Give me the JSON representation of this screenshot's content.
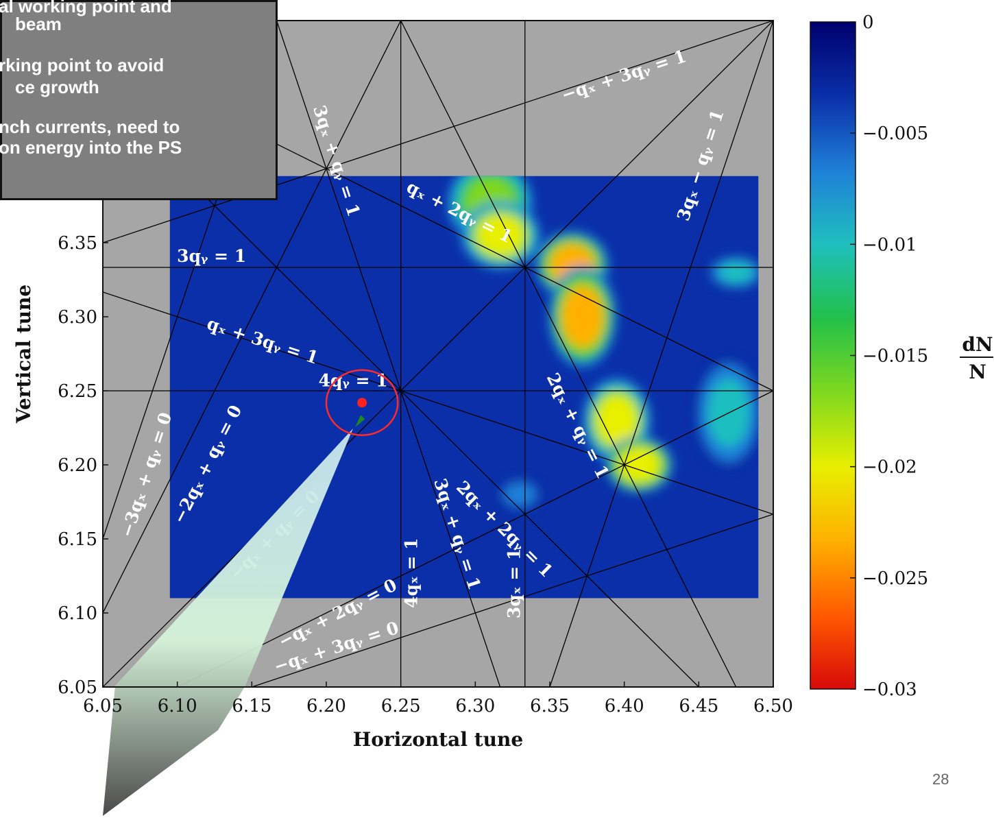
{
  "callout": {
    "lines": [
      "al working point and",
      "beam",
      "rking point to avoid",
      "ce growth",
      "nch currents, need to",
      "on energy into the PS"
    ]
  },
  "page_number": "28",
  "chart_data": {
    "type": "heatmap",
    "xlabel": "Horizontal tune",
    "ylabel": "Vertical tune",
    "xlim": [
      6.05,
      6.5
    ],
    "ylim": [
      6.05,
      6.5
    ],
    "x_ticks": [
      "6.05",
      "6.10",
      "6.15",
      "6.20",
      "6.25",
      "6.30",
      "6.35",
      "6.40",
      "6.45",
      "6.50"
    ],
    "y_ticks": [
      "6.05",
      "6.10",
      "6.15",
      "6.20",
      "6.25",
      "6.30",
      "6.35"
    ],
    "colorbar": {
      "label_num": "dN",
      "label_den": "N",
      "range": [
        -0.03,
        0
      ],
      "ticks": [
        "0",
        "−0.005",
        "−0.01",
        "−0.015",
        "−0.02",
        "−0.025",
        "−0.03"
      ],
      "tick_values": [
        0,
        -0.005,
        -0.01,
        -0.015,
        -0.02,
        -0.025,
        -0.03
      ],
      "colors": [
        "#00006e",
        "#0a2fa8",
        "#1f7fd8",
        "#1fbfbf",
        "#22c04a",
        "#7fd81f",
        "#e8ef00",
        "#ffb000",
        "#ff5a00",
        "#d80a0a"
      ]
    },
    "scan_region": {
      "x": [
        6.095,
        6.49
      ],
      "y": [
        6.11,
        6.395
      ]
    },
    "background_color": "#a6a6a6",
    "resonance_lines": [
      {
        "a": 1,
        "b": 2,
        "c": 1
      },
      {
        "a": 1,
        "b": 3,
        "c": 1
      },
      {
        "a": -1,
        "b": 3,
        "c": 1
      },
      {
        "a": -1,
        "b": 3,
        "c": 0
      },
      {
        "a": -1,
        "b": 2,
        "c": 0
      },
      {
        "a": -1,
        "b": 1,
        "c": 0
      },
      {
        "a": -2,
        "b": 1,
        "c": 0
      },
      {
        "a": -3,
        "b": 1,
        "c": 0
      },
      {
        "a": 3,
        "b": 1,
        "c": 1
      },
      {
        "a": 2,
        "b": 1,
        "c": 1
      },
      {
        "a": 2,
        "b": 2,
        "c": 1
      },
      {
        "a": 3,
        "b": -1,
        "c": 1
      },
      {
        "a": 3,
        "b": 0,
        "c": 1
      },
      {
        "a": 4,
        "b": 0,
        "c": 1
      },
      {
        "a": 0,
        "b": 3,
        "c": 1
      },
      {
        "a": 0,
        "b": 4,
        "c": 1
      }
    ],
    "resonance_labels": [
      {
        "text": "−qₓ + 3qᵧ = 1",
        "x": 6.4,
        "y": 6.462,
        "rot": -18
      },
      {
        "text": "3qₓ + qᵧ = 1",
        "x": 6.206,
        "y": 6.405,
        "rot": 72
      },
      {
        "text": "qₓ + 2qᵧ = 1",
        "x": 6.289,
        "y": 6.37,
        "rot": 27
      },
      {
        "text": "3qₓ − qᵧ = 1",
        "x": 6.452,
        "y": 6.402,
        "rot": -72
      },
      {
        "text": "3qᵧ = 1",
        "x": 6.123,
        "y": 6.34,
        "rot": 0
      },
      {
        "text": "qₓ + 3qᵧ = 1",
        "x": 6.157,
        "y": 6.283,
        "rot": 18
      },
      {
        "text": "4qᵧ = 1",
        "x": 6.218,
        "y": 6.256,
        "rot": 0
      },
      {
        "text": "−3qₓ + qᵧ = 0",
        "x": 6.08,
        "y": 6.193,
        "rot": -72
      },
      {
        "text": "−2qₓ + qᵧ = 0",
        "x": 6.121,
        "y": 6.2,
        "rot": -63
      },
      {
        "text": "−qₓ + qᵧ = 0",
        "x": 6.166,
        "y": 6.152,
        "rot": -45
      },
      {
        "text": "2qₓ + qᵧ = 1",
        "x": 6.368,
        "y": 6.226,
        "rot": 63
      },
      {
        "text": "3qₓ + qᵧ = 1",
        "x": 6.287,
        "y": 6.153,
        "rot": 72
      },
      {
        "text": "2qₓ + 2qᵧ = 1",
        "x": 6.319,
        "y": 6.156,
        "rot": 45
      },
      {
        "text": "4qₓ = 1",
        "x": 6.258,
        "y": 6.127,
        "rot": -90
      },
      {
        "text": "3qₓ = 1",
        "x": 6.327,
        "y": 6.12,
        "rot": -90
      },
      {
        "text": "−qₓ + 2qᵧ = 0",
        "x": 6.208,
        "y": 6.099,
        "rot": -27
      },
      {
        "text": "−qₓ + 3qᵧ = 0",
        "x": 6.207,
        "y": 6.076,
        "rot": -18
      }
    ],
    "hotspots": [
      {
        "x": 6.31,
        "y": 6.377,
        "v": -0.018,
        "sx": 0.015,
        "sy": 0.015
      },
      {
        "x": 6.317,
        "y": 6.355,
        "v": -0.019,
        "sx": 0.014,
        "sy": 0.012
      },
      {
        "x": 6.365,
        "y": 6.335,
        "v": -0.022,
        "sx": 0.013,
        "sy": 0.012
      },
      {
        "x": 6.372,
        "y": 6.3,
        "v": -0.022,
        "sx": 0.012,
        "sy": 0.018
      },
      {
        "x": 6.395,
        "y": 6.23,
        "v": -0.019,
        "sx": 0.012,
        "sy": 0.015
      },
      {
        "x": 6.41,
        "y": 6.2,
        "v": -0.021,
        "sx": 0.012,
        "sy": 0.01
      },
      {
        "x": 6.47,
        "y": 6.235,
        "v": -0.01,
        "sx": 0.012,
        "sy": 0.02
      },
      {
        "x": 6.33,
        "y": 6.18,
        "v": -0.008,
        "sx": 0.008,
        "sy": 0.006
      },
      {
        "x": 6.475,
        "y": 6.33,
        "v": -0.009,
        "sx": 0.01,
        "sy": 0.006
      }
    ],
    "working_point": {
      "x": 6.224,
      "y": 6.242,
      "ring_x": 0.024,
      "ring_y": 0.022
    }
  }
}
